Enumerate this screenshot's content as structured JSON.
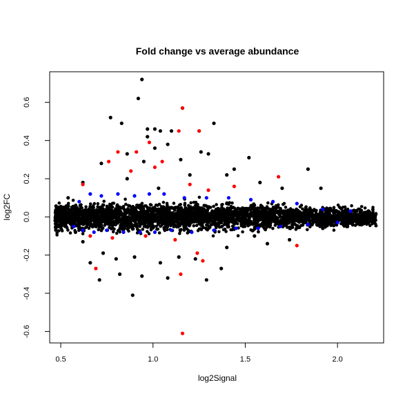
{
  "chart_data": {
    "type": "scatter",
    "title": "Fold change vs average abundance",
    "xlabel": "log2Signal",
    "ylabel": "log2FC",
    "xlim": [
      0.44,
      2.25
    ],
    "ylim": [
      -0.66,
      0.76
    ],
    "x_ticks": [
      0.5,
      1.0,
      1.5,
      2.0
    ],
    "y_ticks": [
      -0.6,
      -0.4,
      -0.2,
      0.0,
      0.2,
      0.4,
      0.6
    ],
    "x_tick_labels": [
      "0.5",
      "1.0",
      "1.5",
      "2.0"
    ],
    "y_tick_labels": [
      "-0.6",
      "-0.4",
      "-0.2",
      "0.0",
      "0.2",
      "0.4",
      "0.6"
    ],
    "grid": false,
    "colors": {
      "black": "#000000",
      "blue": "#0000ff",
      "red": "#ff0000"
    },
    "series": [
      {
        "color": "black",
        "values": [
          [
            0.94,
            0.72
          ],
          [
            0.92,
            0.62
          ],
          [
            1.16,
            0.57
          ],
          [
            0.77,
            0.52
          ],
          [
            0.83,
            0.49
          ],
          [
            1.33,
            0.49
          ],
          [
            0.97,
            0.46
          ],
          [
            1.01,
            0.46
          ],
          [
            1.04,
            0.45
          ],
          [
            1.1,
            0.45
          ],
          [
            1.25,
            0.45
          ],
          [
            0.97,
            0.42
          ],
          [
            1.08,
            0.38
          ],
          [
            1.01,
            0.36
          ],
          [
            1.26,
            0.34
          ],
          [
            1.3,
            0.33
          ],
          [
            0.86,
            0.33
          ],
          [
            1.52,
            0.31
          ],
          [
            1.15,
            0.3
          ],
          [
            0.95,
            0.29
          ],
          [
            0.72,
            0.28
          ],
          [
            1.84,
            0.25
          ],
          [
            1.44,
            0.25
          ],
          [
            1.4,
            0.22
          ],
          [
            1.2,
            0.22
          ],
          [
            0.86,
            0.2
          ],
          [
            0.62,
            0.18
          ],
          [
            1.58,
            0.18
          ],
          [
            1.7,
            0.15
          ],
          [
            1.91,
            0.15
          ],
          [
            1.03,
            0.15
          ],
          [
            0.54,
            0.1
          ],
          [
            0.49,
            0.05
          ],
          [
            0.53,
            0.02
          ],
          [
            0.62,
            -0.13
          ],
          [
            0.73,
            -0.19
          ],
          [
            0.66,
            -0.24
          ],
          [
            0.8,
            -0.22
          ],
          [
            0.9,
            -0.21
          ],
          [
            1.04,
            -0.24
          ],
          [
            1.14,
            -0.21
          ],
          [
            1.37,
            -0.27
          ],
          [
            1.23,
            -0.22
          ],
          [
            0.82,
            -0.3
          ],
          [
            0.71,
            -0.33
          ],
          [
            0.94,
            -0.31
          ],
          [
            1.08,
            -0.32
          ],
          [
            1.29,
            -0.33
          ],
          [
            0.89,
            -0.41
          ],
          [
            1.62,
            -0.14
          ],
          [
            1.74,
            -0.12
          ],
          [
            1.92,
            -0.06
          ],
          [
            2.05,
            -0.05
          ],
          [
            2.12,
            -0.04
          ],
          [
            1.55,
            -0.1
          ],
          [
            1.4,
            -0.16
          ],
          [
            0.58,
            -0.08
          ],
          [
            0.47,
            -0.02
          ]
        ]
      },
      {
        "color": "blue",
        "values": [
          [
            0.66,
            0.12
          ],
          [
            0.72,
            0.11
          ],
          [
            0.81,
            0.12
          ],
          [
            0.9,
            0.11
          ],
          [
            0.98,
            0.12
          ],
          [
            1.06,
            0.12
          ],
          [
            1.17,
            0.1
          ],
          [
            1.29,
            0.1
          ],
          [
            1.41,
            0.1
          ],
          [
            1.53,
            0.09
          ],
          [
            1.65,
            0.08
          ],
          [
            1.78,
            0.07
          ],
          [
            1.92,
            0.04
          ],
          [
            2.07,
            0.03
          ],
          [
            0.6,
            0.08
          ],
          [
            0.62,
            -0.07
          ],
          [
            0.68,
            -0.08
          ],
          [
            0.75,
            -0.07
          ],
          [
            0.84,
            -0.08
          ],
          [
            0.93,
            -0.08
          ],
          [
            1.01,
            -0.08
          ],
          [
            1.1,
            -0.07
          ],
          [
            1.21,
            -0.08
          ],
          [
            1.33,
            -0.07
          ],
          [
            1.45,
            -0.06
          ],
          [
            1.57,
            -0.06
          ],
          [
            1.69,
            -0.05
          ],
          [
            1.84,
            -0.04
          ],
          [
            2.0,
            -0.03
          ],
          [
            0.57,
            -0.05
          ]
        ]
      },
      {
        "color": "red",
        "values": [
          [
            1.16,
            0.57
          ],
          [
            1.14,
            0.45
          ],
          [
            1.25,
            0.45
          ],
          [
            0.98,
            0.39
          ],
          [
            0.91,
            0.34
          ],
          [
            0.81,
            0.34
          ],
          [
            0.88,
            0.24
          ],
          [
            1.05,
            0.29
          ],
          [
            0.76,
            0.29
          ],
          [
            1.01,
            0.26
          ],
          [
            1.68,
            0.21
          ],
          [
            1.44,
            0.16
          ],
          [
            0.62,
            0.17
          ],
          [
            1.2,
            0.17
          ],
          [
            1.3,
            0.14
          ],
          [
            0.69,
            -0.27
          ],
          [
            0.78,
            -0.11
          ],
          [
            0.66,
            -0.1
          ],
          [
            1.27,
            -0.23
          ],
          [
            1.24,
            -0.19
          ],
          [
            1.12,
            -0.12
          ],
          [
            1.78,
            -0.15
          ],
          [
            1.15,
            -0.3
          ],
          [
            1.16,
            -0.61
          ],
          [
            0.96,
            -0.1
          ]
        ]
      }
    ]
  }
}
